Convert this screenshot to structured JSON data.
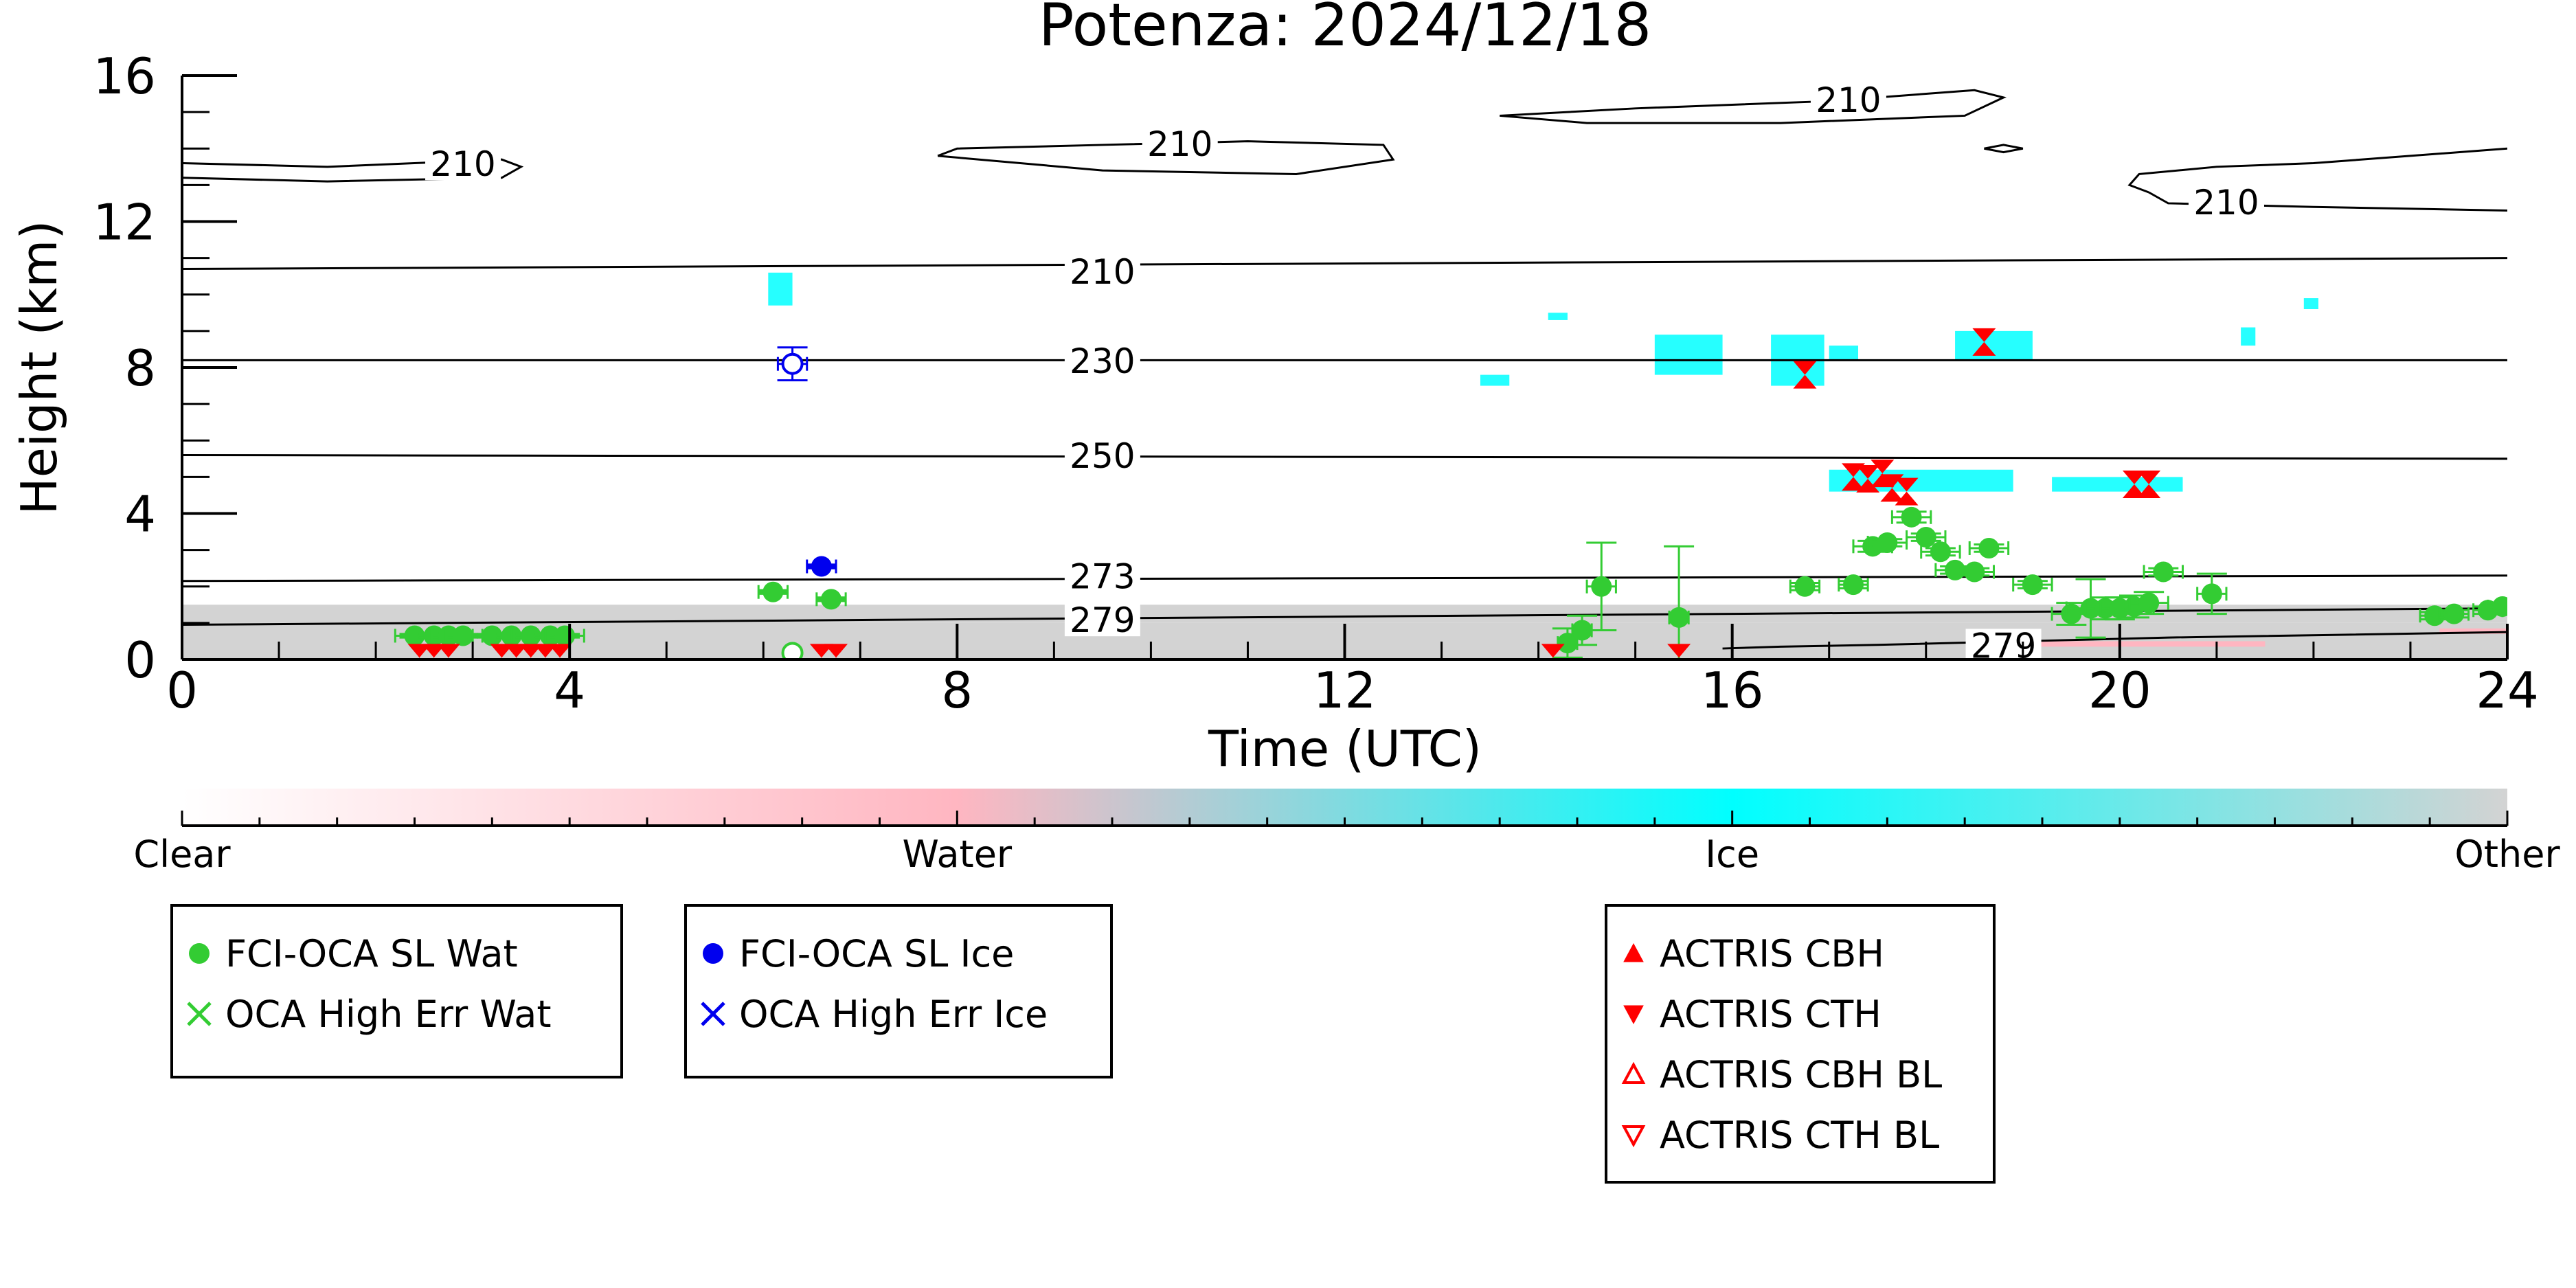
{
  "chart_data": {
    "type": "scatter",
    "title": "Potenza: 2024/12/18",
    "xlabel": "Time (UTC)",
    "ylabel": "Height (km)",
    "xlim": [
      0,
      24
    ],
    "ylim": [
      0,
      16
    ],
    "xticks": [
      0,
      4,
      8,
      12,
      16,
      20,
      24
    ],
    "yticks": [
      0,
      4,
      8,
      12,
      16
    ],
    "colorbar": {
      "labels": [
        "Clear",
        "Water",
        "Ice",
        "Other"
      ],
      "colors": [
        "#ffffff",
        "#ffb6c1",
        "#00ffff",
        "#d3d3d3"
      ]
    },
    "legends": [
      {
        "entries": [
          {
            "label": "FCI-OCA SL Wat",
            "marker": "filled-circle",
            "color": "#33cc33"
          },
          {
            "label": "OCA High Err Wat",
            "marker": "x",
            "color": "#33cc33"
          }
        ]
      },
      {
        "entries": [
          {
            "label": "FCI-OCA SL Ice",
            "marker": "filled-circle",
            "color": "#0000ee"
          },
          {
            "label": "OCA High Err Ice",
            "marker": "x",
            "color": "#0000ee"
          }
        ]
      },
      {
        "entries": [
          {
            "label": "ACTRIS CBH",
            "marker": "triangle-up",
            "color": "#ff0000"
          },
          {
            "label": "ACTRIS CTH",
            "marker": "triangle-down",
            "color": "#ff0000"
          },
          {
            "label": "ACTRIS CBH BL",
            "marker": "triangle-up-open",
            "color": "#ff0000"
          },
          {
            "label": "ACTRIS CTH BL",
            "marker": "triangle-down-open",
            "color": "#ff0000"
          }
        ]
      }
    ],
    "contours": [
      {
        "label": "210",
        "x": [
          0,
          24
        ],
        "y": [
          10.7,
          11.0
        ],
        "label_at": [
          9.5,
          10.6
        ]
      },
      {
        "label": "230",
        "x": [
          0,
          24
        ],
        "y": [
          8.2,
          8.2
        ],
        "label_at": [
          9.5,
          8.15
        ]
      },
      {
        "label": "250",
        "x": [
          0,
          24
        ],
        "y": [
          5.6,
          5.5
        ],
        "label_at": [
          9.5,
          5.55
        ]
      },
      {
        "label": "273",
        "x": [
          0,
          24
        ],
        "y": [
          2.15,
          2.3
        ],
        "label_at": [
          9.5,
          2.25
        ]
      },
      {
        "label": "279",
        "x": [
          0,
          24
        ],
        "y": [
          0.95,
          1.4
        ],
        "label_at": [
          9.5,
          1.05
        ]
      },
      {
        "label": "279",
        "x": [
          15.9,
          16.5,
          17.5,
          19.0,
          20.5,
          24
        ],
        "y": [
          0.3,
          0.35,
          0.4,
          0.5,
          0.6,
          0.75
        ],
        "label_at": [
          18.8,
          0.35
        ]
      },
      {
        "label": "210",
        "x": [
          0,
          1.5,
          3.3,
          3.5,
          3.3,
          1.5,
          0
        ],
        "y": [
          13.6,
          13.5,
          13.7,
          13.5,
          13.2,
          13.1,
          13.2
        ],
        "label_at": [
          2.9,
          13.55
        ]
      },
      {
        "label": "210",
        "x": [
          7.8,
          9.5,
          11.5,
          12.5,
          12.4,
          11.0,
          9.5,
          8.0,
          7.8
        ],
        "y": [
          13.8,
          13.4,
          13.3,
          13.7,
          14.1,
          14.2,
          14.1,
          14.0,
          13.8
        ],
        "label_at": [
          10.3,
          14.1
        ]
      },
      {
        "label": "210",
        "x": [
          13.6,
          15.0,
          17.0,
          18.5,
          18.8,
          18.4,
          16.5,
          14.5,
          13.6
        ],
        "y": [
          14.9,
          15.1,
          15.3,
          15.6,
          15.4,
          14.9,
          14.7,
          14.7,
          14.9
        ],
        "label_at": [
          17.2,
          15.3
        ]
      },
      {
        "label": "",
        "x": [
          18.6,
          18.8,
          19.0,
          18.8,
          18.6
        ],
        "y": [
          14.0,
          13.9,
          14.0,
          14.1,
          14.0
        ],
        "label_at": null
      },
      {
        "label": "210",
        "x": [
          24,
          22.0,
          21.0,
          20.2,
          20.1,
          20.3
        ],
        "y": [
          14.0,
          13.6,
          13.5,
          13.3,
          13.0,
          12.8
        ],
        "label_at": null
      },
      {
        "label": "210",
        "x": [
          20.3,
          20.5,
          22.0,
          24
        ],
        "y": [
          12.8,
          12.5,
          12.4,
          12.3
        ],
        "label_at": [
          21.1,
          12.5
        ]
      }
    ],
    "series": [
      {
        "name": "FCI-OCA SL Wat",
        "color": "#33cc33",
        "marker": "filled-circle",
        "points": [
          {
            "x": 2.4,
            "y": 0.65,
            "xerr": 0.2,
            "yerr": 0.05
          },
          {
            "x": 2.6,
            "y": 0.65,
            "xerr": 0.2,
            "yerr": 0.05
          },
          {
            "x": 2.75,
            "y": 0.65,
            "xerr": 0.2,
            "yerr": 0.05
          },
          {
            "x": 2.9,
            "y": 0.65,
            "xerr": 0.2,
            "yerr": 0.05
          },
          {
            "x": 3.2,
            "y": 0.65,
            "xerr": 0.2,
            "yerr": 0.05
          },
          {
            "x": 3.4,
            "y": 0.65,
            "xerr": 0.2,
            "yerr": 0.05
          },
          {
            "x": 3.6,
            "y": 0.65,
            "xerr": 0.2,
            "yerr": 0.05
          },
          {
            "x": 3.8,
            "y": 0.65,
            "xerr": 0.2,
            "yerr": 0.05
          },
          {
            "x": 3.95,
            "y": 0.65,
            "xerr": 0.2,
            "yerr": 0.05
          },
          {
            "x": 6.1,
            "y": 1.85,
            "xerr": 0.15,
            "yerr": 0.05
          },
          {
            "x": 6.7,
            "y": 1.65,
            "xerr": 0.15,
            "yerr": 0.05
          },
          {
            "x": 14.3,
            "y": 0.45,
            "xerr": 0.1,
            "yerr": 0.4
          },
          {
            "x": 14.45,
            "y": 0.8,
            "xerr": 0.1,
            "yerr": 0.4
          },
          {
            "x": 14.65,
            "y": 2.0,
            "xerr": 0.15,
            "yerr": 1.2
          },
          {
            "x": 15.45,
            "y": 1.15,
            "xerr": 0.1,
            "yerr": 1.95
          },
          {
            "x": 16.75,
            "y": 2.0,
            "xerr": 0.15,
            "yerr": 0.1
          },
          {
            "x": 17.25,
            "y": 2.05,
            "xerr": 0.15,
            "yerr": 0.1
          },
          {
            "x": 17.45,
            "y": 3.1,
            "xerr": 0.2,
            "yerr": 0.15
          },
          {
            "x": 17.6,
            "y": 3.2,
            "xerr": 0.2,
            "yerr": 0.1
          },
          {
            "x": 17.85,
            "y": 3.9,
            "xerr": 0.2,
            "yerr": 0.15
          },
          {
            "x": 18.0,
            "y": 3.35,
            "xerr": 0.2,
            "yerr": 0.1
          },
          {
            "x": 18.15,
            "y": 2.95,
            "xerr": 0.2,
            "yerr": 0.1
          },
          {
            "x": 18.3,
            "y": 2.45,
            "xerr": 0.2,
            "yerr": 0.1
          },
          {
            "x": 18.5,
            "y": 2.4,
            "xerr": 0.2,
            "yerr": 0.1
          },
          {
            "x": 18.65,
            "y": 3.05,
            "xerr": 0.2,
            "yerr": 0.1
          },
          {
            "x": 19.1,
            "y": 2.05,
            "xerr": 0.2,
            "yerr": 0.1
          },
          {
            "x": 19.5,
            "y": 1.25,
            "xerr": 0.2,
            "yerr": 0.3
          },
          {
            "x": 19.7,
            "y": 1.4,
            "xerr": 0.25,
            "yerr": 0.8
          },
          {
            "x": 19.85,
            "y": 1.4,
            "xerr": 0.2,
            "yerr": 0.3
          },
          {
            "x": 20.0,
            "y": 1.4,
            "xerr": 0.2,
            "yerr": 0.3
          },
          {
            "x": 20.15,
            "y": 1.45,
            "xerr": 0.2,
            "yerr": 0.3
          },
          {
            "x": 20.3,
            "y": 1.55,
            "xerr": 0.2,
            "yerr": 0.3
          },
          {
            "x": 20.45,
            "y": 2.4,
            "xerr": 0.2,
            "yerr": 0.1
          },
          {
            "x": 20.95,
            "y": 1.8,
            "xerr": 0.15,
            "yerr": 0.55
          },
          {
            "x": 23.25,
            "y": 1.2,
            "xerr": 0.15,
            "yerr": 0.1
          },
          {
            "x": 23.45,
            "y": 1.25,
            "xerr": 0.15,
            "yerr": 0.1
          },
          {
            "x": 23.8,
            "y": 1.35,
            "xerr": 0.15,
            "yerr": 0.1
          },
          {
            "x": 23.95,
            "y": 1.45,
            "xerr": 0.15,
            "yerr": 0.1
          }
        ]
      },
      {
        "name": "OCA High Err Wat",
        "color": "#33cc33",
        "marker": "open-circle",
        "points": [
          {
            "x": 6.3,
            "y": 0.18,
            "xerr": 0,
            "yerr": 0
          }
        ]
      },
      {
        "name": "FCI-OCA SL Ice",
        "color": "#0000ee",
        "marker": "filled-circle",
        "points": [
          {
            "x": 6.6,
            "y": 2.55,
            "xerr": 0.15,
            "yerr": 0.05
          }
        ]
      },
      {
        "name": "OCA High Err Ice",
        "color": "#0000ee",
        "marker": "open-circle",
        "points": [
          {
            "x": 6.3,
            "y": 8.1,
            "xerr": 0.15,
            "yerr": 0.45
          }
        ]
      },
      {
        "name": "ACTRIS CTH",
        "color": "#ff0000",
        "marker": "hourglass",
        "points": [
          {
            "x": 2.45,
            "y": 0.05
          },
          {
            "x": 2.6,
            "y": 0.05
          },
          {
            "x": 2.75,
            "y": 0.05
          },
          {
            "x": 3.3,
            "y": 0.05
          },
          {
            "x": 3.45,
            "y": 0.05
          },
          {
            "x": 3.6,
            "y": 0.05
          },
          {
            "x": 3.75,
            "y": 0.05
          },
          {
            "x": 3.9,
            "y": 0.05
          },
          {
            "x": 6.6,
            "y": 0.05
          },
          {
            "x": 6.75,
            "y": 0.05
          },
          {
            "x": 14.15,
            "y": 0.05
          },
          {
            "x": 15.45,
            "y": 0.05
          },
          {
            "x": 16.75,
            "y": 7.8
          },
          {
            "x": 17.25,
            "y": 5.0
          },
          {
            "x": 17.4,
            "y": 4.95
          },
          {
            "x": 17.55,
            "y": 5.1
          },
          {
            "x": 17.65,
            "y": 4.7
          },
          {
            "x": 17.8,
            "y": 4.6
          },
          {
            "x": 18.6,
            "y": 8.7
          },
          {
            "x": 20.15,
            "y": 4.8
          },
          {
            "x": 20.3,
            "y": 4.8
          }
        ]
      }
    ],
    "field_patches": [
      {
        "category": "Ice",
        "x": [
          6.05,
          6.3
        ],
        "y": [
          9.7,
          10.6
        ]
      },
      {
        "category": "Ice",
        "x": [
          13.4,
          13.7
        ],
        "y": [
          7.5,
          7.8
        ]
      },
      {
        "category": "Ice",
        "x": [
          14.1,
          14.3
        ],
        "y": [
          9.3,
          9.5
        ]
      },
      {
        "category": "Ice",
        "x": [
          15.2,
          15.9
        ],
        "y": [
          7.8,
          8.9
        ]
      },
      {
        "category": "Ice",
        "x": [
          16.4,
          16.95
        ],
        "y": [
          7.5,
          8.9
        ]
      },
      {
        "category": "Ice",
        "x": [
          17.0,
          17.3
        ],
        "y": [
          8.2,
          8.6
        ]
      },
      {
        "category": "Ice",
        "x": [
          18.3,
          19.1
        ],
        "y": [
          8.2,
          9.0
        ]
      },
      {
        "category": "Ice",
        "x": [
          21.25,
          21.4
        ],
        "y": [
          8.6,
          9.1
        ]
      },
      {
        "category": "Ice",
        "x": [
          21.9,
          22.05
        ],
        "y": [
          9.6,
          9.9
        ]
      },
      {
        "category": "Ice",
        "x": [
          17.0,
          18.9
        ],
        "y": [
          4.6,
          5.2
        ]
      },
      {
        "category": "Ice",
        "x": [
          19.3,
          20.65
        ],
        "y": [
          4.6,
          5.0
        ]
      },
      {
        "category": "Other",
        "x": [
          0,
          24
        ],
        "y": [
          0,
          1.0
        ]
      },
      {
        "category": "Other",
        "x": [
          0,
          24
        ],
        "y": [
          1.0,
          1.5
        ]
      },
      {
        "category": "Water",
        "x": [
          18.8,
          21.5
        ],
        "y": [
          0.35,
          0.5
        ]
      },
      {
        "category": "Water",
        "x": [
          23.3,
          24
        ],
        "y": [
          0.7,
          0.85
        ]
      }
    ]
  }
}
